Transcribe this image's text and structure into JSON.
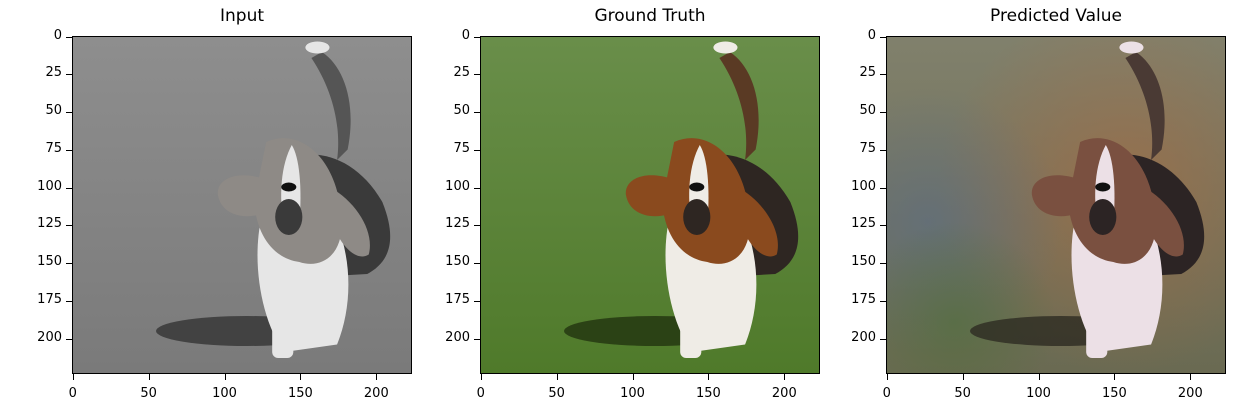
{
  "panels": [
    {
      "title": "Input",
      "mode": "grayscale"
    },
    {
      "title": "Ground Truth",
      "mode": "color"
    },
    {
      "title": "Predicted Value",
      "mode": "predicted"
    }
  ],
  "axes": {
    "y_ticks": [
      "0",
      "25",
      "50",
      "75",
      "100",
      "125",
      "150",
      "175",
      "200"
    ],
    "x_ticks": [
      "0",
      "50",
      "100",
      "150",
      "200"
    ],
    "y_values": [
      0,
      25,
      50,
      75,
      100,
      125,
      150,
      175,
      200
    ],
    "x_values": [
      0,
      50,
      100,
      150,
      200
    ],
    "range": [
      0,
      224
    ]
  },
  "image": {
    "subject": "basset hound running on grass",
    "colors": {
      "grass": "#4f7a2a",
      "grass_gray": "#7a7a7a",
      "fur_brown": "#8a4a1e",
      "fur_white": "#efece6",
      "fur_dark": "#2e2622",
      "predicted_tint_orange": "#b0683a",
      "predicted_tint_blue": "#5a6c86"
    }
  }
}
